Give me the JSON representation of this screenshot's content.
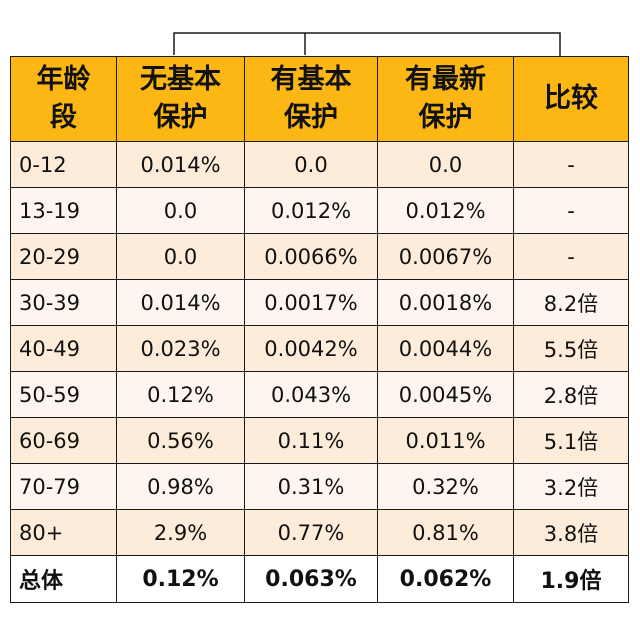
{
  "headers": {
    "age": [
      "年龄",
      "段"
    ],
    "none": [
      "无基本",
      "保护"
    ],
    "basic": [
      "有基本",
      "保护"
    ],
    "latest": [
      "有最新",
      "保护"
    ],
    "compare": [
      "比较"
    ]
  },
  "rows": [
    {
      "age": "0-12",
      "none": "0.014%",
      "basic": "0.0",
      "latest": "0.0",
      "compare": "-"
    },
    {
      "age": "13-19",
      "none": "0.0",
      "basic": "0.012%",
      "latest": "0.012%",
      "compare": "-"
    },
    {
      "age": "20-29",
      "none": "0.0",
      "basic": "0.0066%",
      "latest": "0.0067%",
      "compare": "-"
    },
    {
      "age": "30-39",
      "none": "0.014%",
      "basic": "0.0017%",
      "latest": "0.0018%",
      "compare": "8.2倍"
    },
    {
      "age": "40-49",
      "none": "0.023%",
      "basic": "0.0042%",
      "latest": "0.0044%",
      "compare": "5.5倍"
    },
    {
      "age": "50-59",
      "none": "0.12%",
      "basic": "0.043%",
      "latest": "0.0045%",
      "compare": "2.8倍"
    },
    {
      "age": "60-69",
      "none": "0.56%",
      "basic": "0.11%",
      "latest": "0.011%",
      "compare": "5.1倍"
    },
    {
      "age": "70-79",
      "none": "0.98%",
      "basic": "0.31%",
      "latest": "0.32%",
      "compare": "3.2倍"
    },
    {
      "age": "80+",
      "none": "2.9%",
      "basic": "0.77%",
      "latest": "0.81%",
      "compare": "3.8倍"
    }
  ],
  "total": {
    "age": "总体",
    "none": "0.12%",
    "basic": "0.063%",
    "latest": "0.062%",
    "compare": "1.9倍"
  },
  "colors": {
    "header_bg": "#fdb714",
    "row_odd_bg": "#fdecd9",
    "row_even_bg": "#fef6ee",
    "border": "#1a1a1a"
  }
}
